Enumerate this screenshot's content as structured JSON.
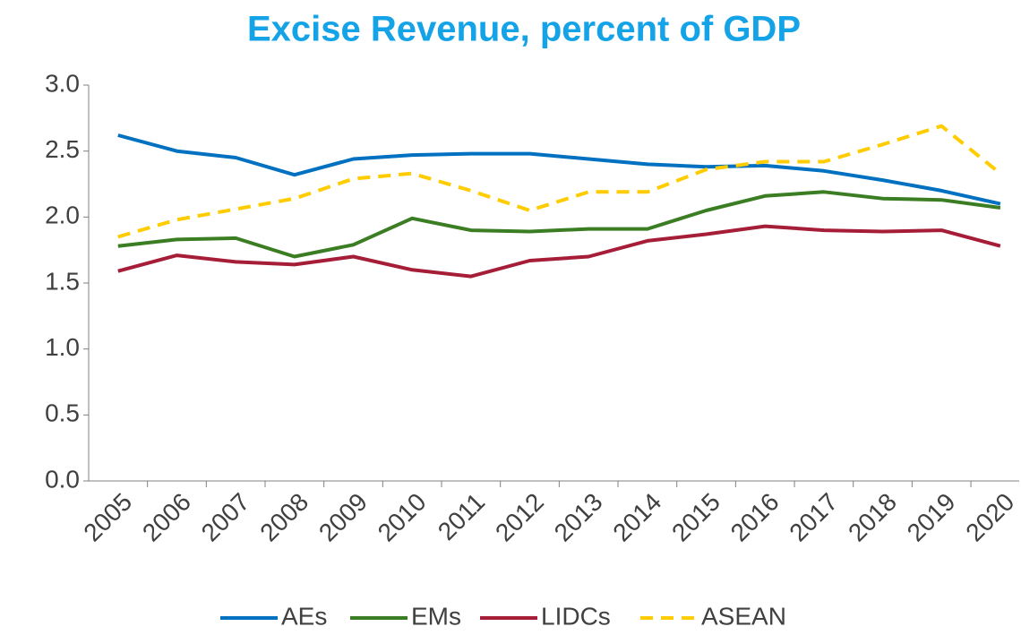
{
  "chart_data": {
    "type": "line",
    "title": "Excise Revenue, percent of GDP",
    "categories": [
      "2005",
      "2006",
      "2007",
      "2008",
      "2009",
      "2010",
      "2011",
      "2012",
      "2013",
      "2014",
      "2015",
      "2016",
      "2017",
      "2018",
      "2019",
      "2020"
    ],
    "series": [
      {
        "name": "AEs",
        "color": "#0070c0",
        "values": [
          2.62,
          2.5,
          2.45,
          2.32,
          2.44,
          2.47,
          2.48,
          2.48,
          2.44,
          2.4,
          2.38,
          2.39,
          2.35,
          2.28,
          2.2,
          2.1
        ]
      },
      {
        "name": "EMs",
        "color": "#3a7d22",
        "values": [
          1.78,
          1.83,
          1.84,
          1.7,
          1.79,
          1.99,
          1.9,
          1.89,
          1.91,
          1.91,
          2.05,
          2.16,
          2.19,
          2.14,
          2.13,
          2.07
        ]
      },
      {
        "name": "LIDCs",
        "color": "#a51d37",
        "values": [
          1.59,
          1.71,
          1.66,
          1.64,
          1.7,
          1.6,
          1.55,
          1.67,
          1.7,
          1.82,
          1.87,
          1.93,
          1.9,
          1.89,
          1.9,
          1.78
        ]
      },
      {
        "name": "ASEAN",
        "color": "#ffcc00",
        "dashed": true,
        "values": [
          1.85,
          1.98,
          2.06,
          2.14,
          2.29,
          2.33,
          2.2,
          2.05,
          2.19,
          2.19,
          2.36,
          2.42,
          2.42,
          2.55,
          2.69,
          2.33
        ]
      }
    ],
    "ylim": [
      0,
      3
    ],
    "yticks": [
      {
        "value": 0,
        "label": "0.0"
      },
      0.5,
      {
        "value": 1,
        "label": "1.0"
      },
      1.5,
      {
        "value": 2,
        "label": "2.0"
      },
      2.5,
      {
        "value": 3,
        "label": "3.0"
      }
    ],
    "grid": false,
    "legend": "bottom"
  }
}
